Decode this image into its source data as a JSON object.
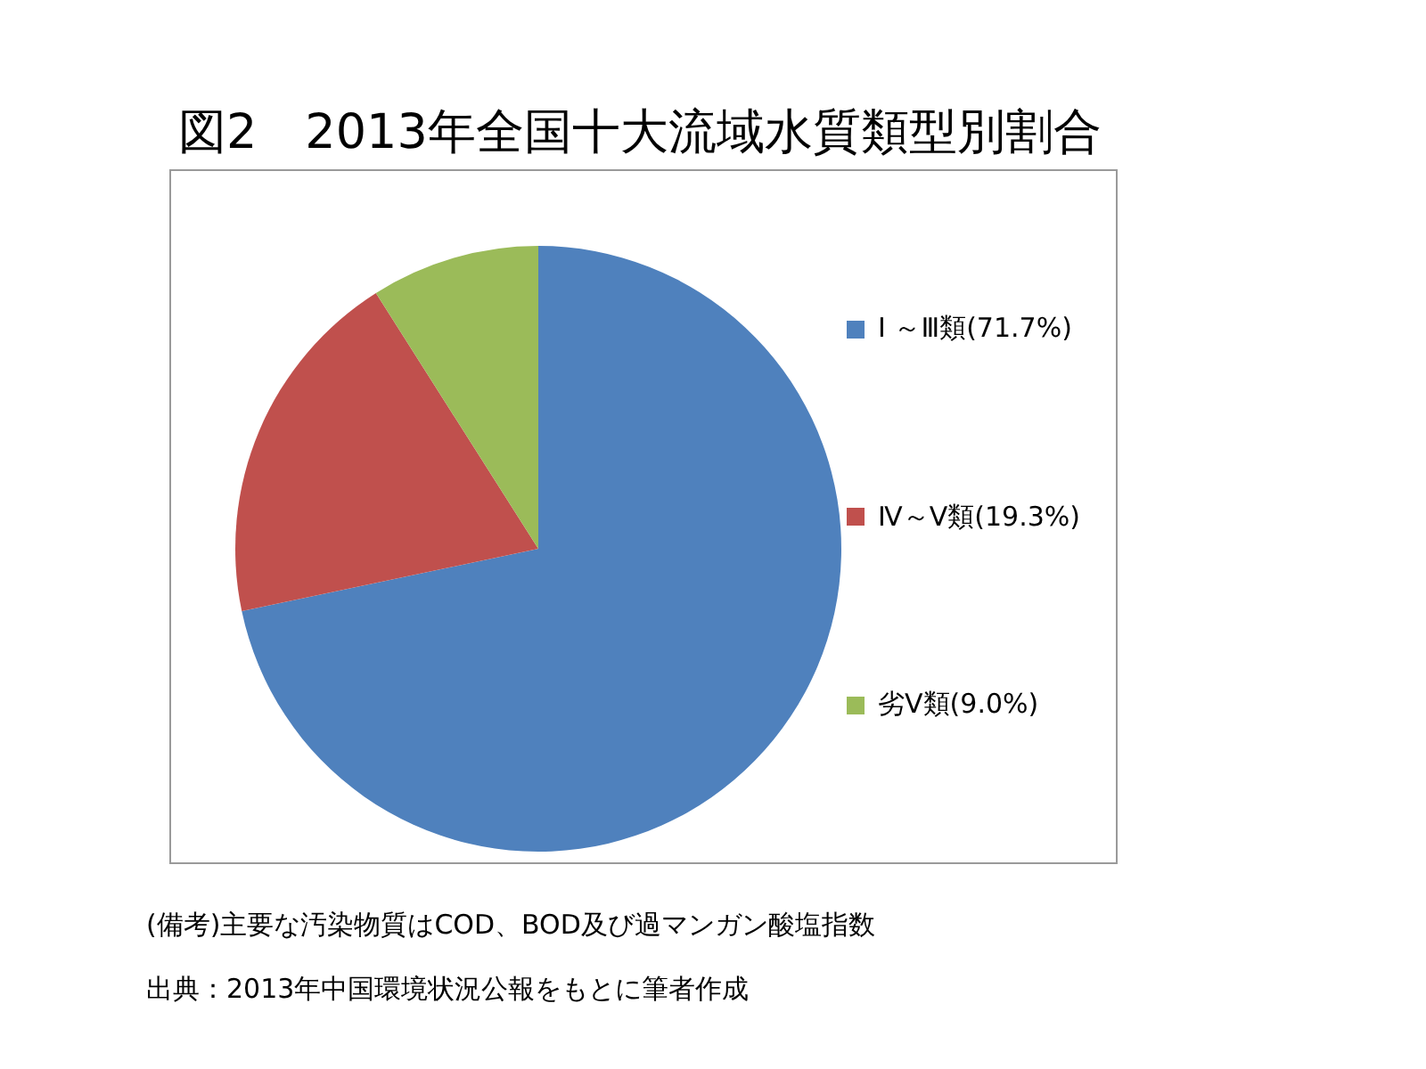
{
  "chart_data": {
    "type": "pie",
    "title": "図2　2013年全国十大流域水質類型別割合",
    "categories": [
      "Ⅰ ～Ⅲ類(71.7%)",
      "Ⅳ～Ⅴ類(19.3%)",
      "劣Ⅴ類(9.0%)"
    ],
    "values": [
      71.7,
      19.3,
      9.0
    ],
    "colors": [
      "#4f81bd",
      "#c0504d",
      "#9bbb59"
    ],
    "legend": "right",
    "annotations": [
      "(備考)主要な汚染物質はCOD、BOD及び過マンガン酸塩指数",
      "出典：2013年中国環境状況公報をもとに筆者作成"
    ]
  }
}
